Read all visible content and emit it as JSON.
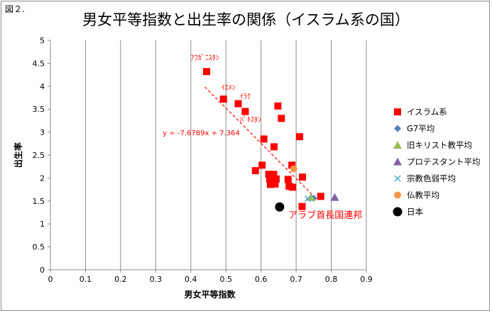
{
  "figure_label": "図２.",
  "chart_data": {
    "type": "scatter",
    "title": "男女平等指数と出生率の関係（イスラム系の国）",
    "xlabel": "男女平等指数",
    "ylabel": "出生率",
    "xlim": [
      0,
      0.9
    ],
    "ylim": [
      0,
      5
    ],
    "x_ticks": [
      "0",
      "0.1",
      "0.2",
      "0.3",
      "0.4",
      "0.5",
      "0.6",
      "0.7",
      "0.8",
      "0.9"
    ],
    "y_ticks": [
      "0",
      "0.5",
      "1",
      "1.5",
      "2",
      "2.5",
      "3",
      "3.5",
      "4",
      "4.5",
      "5"
    ],
    "grid": "vertical",
    "legend_position": "right",
    "series": [
      {
        "name": "イスラム系",
        "marker": "square",
        "color": "#ff0000",
        "points": [
          {
            "x": 0.445,
            "y": 4.32
          },
          {
            "x": 0.493,
            "y": 3.72
          },
          {
            "x": 0.535,
            "y": 3.62
          },
          {
            "x": 0.555,
            "y": 3.45
          },
          {
            "x": 0.648,
            "y": 3.57
          },
          {
            "x": 0.658,
            "y": 3.3
          },
          {
            "x": 0.608,
            "y": 2.85
          },
          {
            "x": 0.71,
            "y": 2.9
          },
          {
            "x": 0.637,
            "y": 2.68
          },
          {
            "x": 0.603,
            "y": 2.28
          },
          {
            "x": 0.584,
            "y": 2.16
          },
          {
            "x": 0.688,
            "y": 2.28
          },
          {
            "x": 0.622,
            "y": 2.08
          },
          {
            "x": 0.636,
            "y": 2.08
          },
          {
            "x": 0.625,
            "y": 1.97
          },
          {
            "x": 0.643,
            "y": 1.98
          },
          {
            "x": 0.627,
            "y": 1.86
          },
          {
            "x": 0.64,
            "y": 1.87
          },
          {
            "x": 0.677,
            "y": 1.97
          },
          {
            "x": 0.68,
            "y": 1.82
          },
          {
            "x": 0.69,
            "y": 1.8
          },
          {
            "x": 0.718,
            "y": 2.02
          },
          {
            "x": 0.77,
            "y": 1.6
          },
          {
            "x": 0.717,
            "y": 1.38
          }
        ]
      },
      {
        "name": "G7平均",
        "marker": "diamond",
        "color": "#4f81bd",
        "points": [
          {
            "x": 0.75,
            "y": 1.56
          }
        ]
      },
      {
        "name": "旧キリスト教平均",
        "marker": "triangle",
        "color": "#9bbb59",
        "points": [
          {
            "x": 0.742,
            "y": 1.58
          }
        ]
      },
      {
        "name": "プロテスタント平均",
        "marker": "triangle",
        "color": "#8064a2",
        "points": [
          {
            "x": 0.81,
            "y": 1.58
          }
        ]
      },
      {
        "name": "宗教色弱平均",
        "marker": "x",
        "color": "#4bacc6",
        "points": [
          {
            "x": 0.733,
            "y": 1.55
          }
        ]
      },
      {
        "name": "仏教平均",
        "marker": "circle",
        "color": "#f79646",
        "points": [
          {
            "x": 0.693,
            "y": 2.2
          }
        ]
      },
      {
        "name": "日本",
        "marker": "circle-large",
        "color": "#000000",
        "points": [
          {
            "x": 0.653,
            "y": 1.37
          }
        ]
      }
    ],
    "trendline": {
      "equation": "y = -7.6789x + 7.364",
      "slope": -7.6789,
      "intercept": 7.364,
      "x_range": [
        0.44,
        0.76
      ],
      "color": "#ff0000"
    },
    "annotations": [
      {
        "text": "ｱﾌｶﾞﾆｽﾀﾝ",
        "x": 0.4,
        "y": 4.57,
        "style": "small"
      },
      {
        "text": "ｲｴﾒﾝ",
        "x": 0.487,
        "y": 3.92,
        "style": "small"
      },
      {
        "text": "ｲﾗｸ",
        "x": 0.54,
        "y": 3.73,
        "style": "small"
      },
      {
        "text": "ﾊﾟｷｽﾀﾝ",
        "x": 0.54,
        "y": 3.22,
        "style": "small"
      },
      {
        "text": "y = -7.6789x + 7.364",
        "x": 0.32,
        "y": 2.93,
        "style": "small"
      },
      {
        "text": "アラブ首長国連邦",
        "x": 0.678,
        "y": 1.13,
        "style": "large"
      }
    ]
  }
}
